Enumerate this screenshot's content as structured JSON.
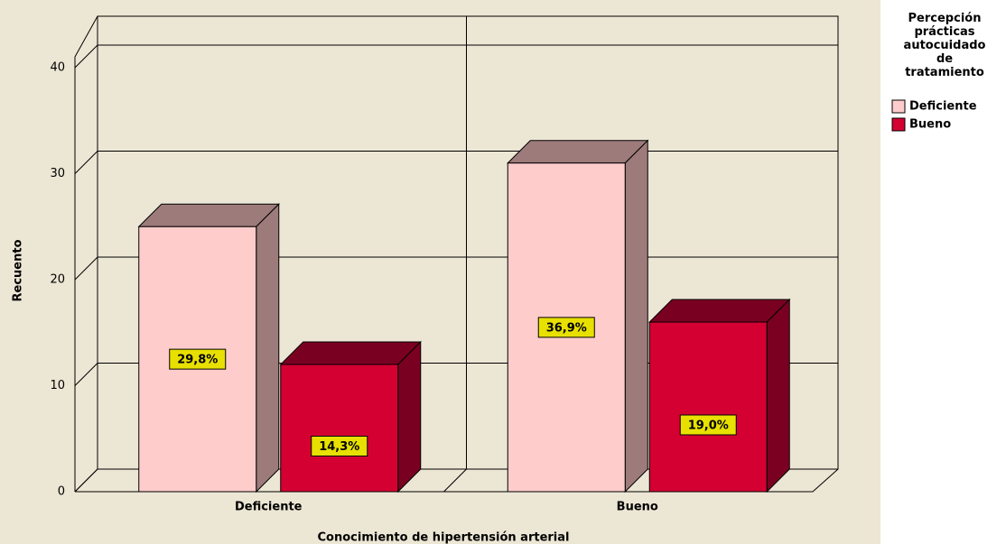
{
  "chart_data": {
    "type": "bar3d",
    "x_label": "Conocimiento de hipertensión arterial",
    "y_label": "Recuento",
    "legend_title": "Percepción prácticas autocuidado de tratamiento",
    "categories": [
      "Deficiente",
      "Bueno"
    ],
    "series": [
      {
        "name": "Deficiente",
        "color": "#ffcccc",
        "shade": "#9e7b7b",
        "values": [
          25,
          31
        ],
        "labels": [
          "29,8%",
          "36,9%"
        ]
      },
      {
        "name": "Bueno",
        "color": "#d40032",
        "shade": "#7a0022",
        "values": [
          12,
          16
        ],
        "labels": [
          "14,3%",
          "19,0%"
        ]
      }
    ],
    "ylim": [
      0,
      40
    ],
    "yticks": [
      0,
      10,
      20,
      30,
      40
    ],
    "grid": true,
    "legend": "right"
  }
}
